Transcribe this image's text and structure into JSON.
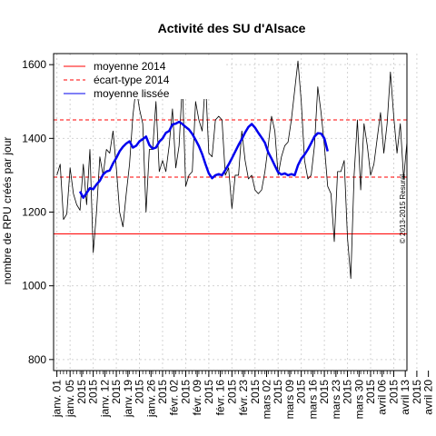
{
  "chart_data": {
    "type": "line",
    "title": "Activité des SU d'Alsace",
    "ylabel": "nombre de RPU créés par jour",
    "xlabel": "",
    "ylim": [
      770,
      1630
    ],
    "xlim": [
      -1,
      106
    ],
    "yticks": [
      800,
      1000,
      1200,
      1400,
      1600
    ],
    "x_tick_labels": [
      "janv. 01",
      "janv. 05",
      "2015",
      "2015",
      "janv. 12",
      "2015",
      "janv. 19",
      "2015",
      "janv. 26",
      "2015",
      "févr. 02",
      "2015",
      "févr. 09",
      "2015",
      "févr. 16",
      "2015",
      "févr. 23",
      "2015",
      "mars 02",
      "2015",
      "mars 09",
      "2015",
      "mars 16",
      "2015",
      "mars 23",
      "2015",
      "mars 30",
      "2015",
      "avril 06",
      "2015",
      "avril 13",
      "2015",
      "avril 20",
      "2015"
    ],
    "reference_lines": {
      "mean_2014": 1141,
      "sd_2014": [
        1295,
        1450
      ],
      "colors": {
        "mean": "#FF0000",
        "sd": "#FF0000"
      }
    },
    "legend": {
      "position": "top-left",
      "entries": [
        "moyenne 2014",
        "écart-type 2014",
        "moyenne lissée"
      ]
    },
    "annotation": "© 2013-2015 Resural",
    "grid": true,
    "series": [
      {
        "name": "",
        "color": "#000000",
        "style": "thin",
        "x_start": 0,
        "values": [
          1300,
          1330,
          1180,
          1195,
          1320,
          1250,
          1220,
          1205,
          1330,
          1220,
          1370,
          1090,
          1200,
          1350,
          1300,
          1370,
          1360,
          1420,
          1320,
          1200,
          1160,
          1250,
          1330,
          1460,
          1540,
          1480,
          1440,
          1200,
          1370,
          1370,
          1500,
          1310,
          1340,
          1310,
          1380,
          1480,
          1320,
          1380,
          1550,
          1270,
          1300,
          1310,
          1500,
          1450,
          1420,
          1560,
          1360,
          1350,
          1450,
          1460,
          1450,
          1300,
          1320,
          1210,
          1300,
          1300,
          1420,
          1340,
          1290,
          1300,
          1260,
          1250,
          1260,
          1310,
          1380,
          1460,
          1420,
          1300,
          1350,
          1380,
          1390,
          1450,
          1530,
          1610,
          1500,
          1340,
          1290,
          1300,
          1380,
          1540,
          1470,
          1380,
          1270,
          1250,
          1120,
          1310,
          1310,
          1340,
          1130,
          1020,
          1300,
          1450,
          1260,
          1440,
          1380,
          1300,
          1330,
          1400,
          1470,
          1360,
          1440,
          1580,
          1460,
          1360,
          1440,
          1290,
          1390
        ]
      },
      {
        "name": "",
        "color": "#0000EE",
        "style": "thick",
        "x_start": 7,
        "values": [
          1256,
          1239,
          1252,
          1265,
          1262,
          1275,
          1285,
          1302,
          1310,
          1313,
          1332,
          1347,
          1365,
          1377,
          1386,
          1392,
          1375,
          1380,
          1392,
          1398,
          1405,
          1382,
          1372,
          1375,
          1391,
          1400,
          1415,
          1420,
          1438,
          1440,
          1445,
          1439,
          1431,
          1424,
          1412,
          1396,
          1379,
          1357,
          1330,
          1305,
          1292,
          1300,
          1303,
          1300,
          1314,
          1329,
          1346,
          1364,
          1382,
          1398,
          1416,
          1431,
          1439,
          1429,
          1415,
          1402,
          1388,
          1362,
          1345,
          1326,
          1308,
          1302,
          1305,
          1300,
          1303,
          1300,
          1327,
          1345,
          1356,
          1370,
          1387,
          1405,
          1414,
          1413,
          1400,
          1365
        ]
      }
    ]
  }
}
